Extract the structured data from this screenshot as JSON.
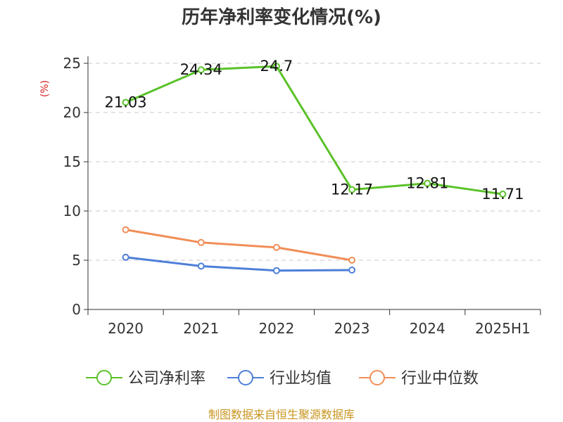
{
  "chart_data": {
    "type": "line",
    "title": "历年净利率变化情况(%)",
    "ylabel": "(%)",
    "categories": [
      "2020",
      "2021",
      "2022",
      "2023",
      "2024",
      "2025H1"
    ],
    "ylim": [
      0,
      25
    ],
    "yticks": [
      "0",
      "5",
      "10",
      "15",
      "20",
      "25"
    ],
    "grid": true,
    "legend_position": "bottom",
    "series": [
      {
        "name": "公司净利率",
        "color": "#5ac229",
        "values": [
          21.03,
          24.34,
          24.7,
          12.17,
          12.81,
          11.71
        ],
        "labels": [
          "21.03",
          "24.34",
          "24.7",
          "12.17",
          "12.81",
          "11.71"
        ]
      },
      {
        "name": "行业均值",
        "color": "#4e7fd9",
        "values": [
          5.3,
          4.4,
          3.95,
          4.0,
          null,
          null
        ]
      },
      {
        "name": "行业中位数",
        "color": "#f18e57",
        "values": [
          8.1,
          6.8,
          6.3,
          5.0,
          null,
          null
        ]
      }
    ]
  },
  "source_text": "制图数据来自恒生聚源数据库"
}
